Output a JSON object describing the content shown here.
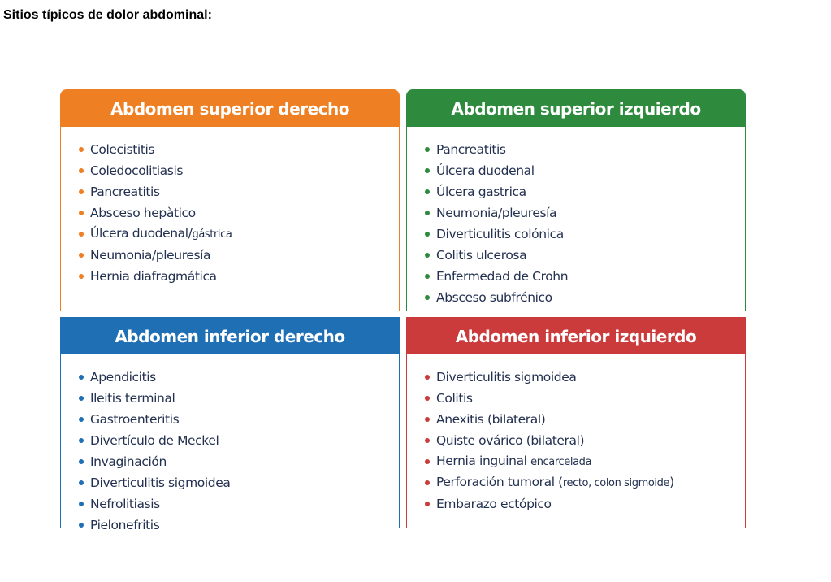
{
  "title": "Sitios típicos de dolor abdominal:",
  "quadrants": [
    {
      "heading": "Abdomen superior derecho",
      "color": "#ee7f22",
      "items": [
        [
          "Colecistitis",
          ""
        ],
        [
          "Coledocolitiasis",
          ""
        ],
        [
          "Pancreatitis",
          ""
        ],
        [
          "Absceso hepàtico",
          ""
        ],
        [
          "Úlcera duodenal/",
          "gástrica"
        ],
        [
          "Neumonia/pleuresía",
          ""
        ],
        [
          "Hernia diafragmática",
          ""
        ]
      ]
    },
    {
      "heading": "Abdomen superior izquierdo",
      "color": "#2e8b3e",
      "items": [
        [
          "Pancreatitis",
          ""
        ],
        [
          "Úlcera duodenal",
          ""
        ],
        [
          "Úlcera gastrica",
          ""
        ],
        [
          "Neumonia/pleuresía",
          ""
        ],
        [
          "Diverticulitis colónica",
          ""
        ],
        [
          "Colitis ulcerosa",
          ""
        ],
        [
          "Enfermedad de Crohn",
          ""
        ],
        [
          "Absceso subfrénico",
          ""
        ]
      ]
    },
    {
      "heading": "Abdomen inferior derecho",
      "color": "#1f6fb5",
      "items": [
        [
          "Apendicitis",
          ""
        ],
        [
          "Ileitis terminal",
          ""
        ],
        [
          "Gastroenteritis",
          ""
        ],
        [
          "Divertículo de Meckel",
          ""
        ],
        [
          "Invaginación",
          ""
        ],
        [
          "Diverticulitis sigmoidea",
          ""
        ],
        [
          "Nefrolitiasis",
          ""
        ],
        [
          "Pielonefritis",
          ""
        ]
      ]
    },
    {
      "heading": "Abdomen inferior izquierdo",
      "color": "#cc3b3c",
      "items": [
        [
          "Diverticulitis sigmoidea",
          ""
        ],
        [
          "Colitis",
          ""
        ],
        [
          "Anexitis (bilateral)",
          ""
        ],
        [
          "Quiste ovárico (bilateral)",
          ""
        ],
        [
          "Hernia inguinal ",
          "encarcelada"
        ],
        [
          "Perforación tumoral (",
          "recto, colon sigmoide",
          ")"
        ],
        [
          "Embarazo ectópico",
          ""
        ]
      ]
    }
  ]
}
